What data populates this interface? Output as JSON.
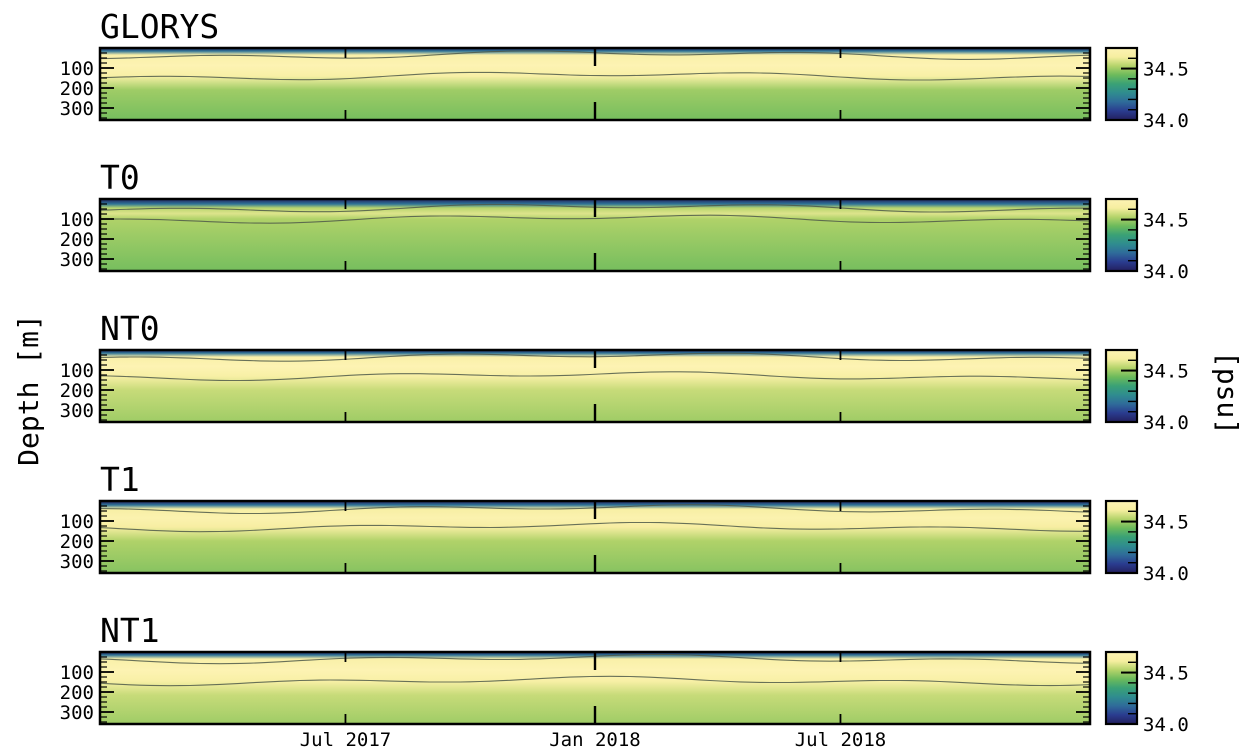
{
  "chart_data": {
    "type": "heatmap",
    "ylabel": "Depth [m]",
    "colorbar_label": "[psu]",
    "colormap": [
      "#231f5e",
      "#2a3c8f",
      "#2f6b9a",
      "#2f8c8f",
      "#3aa176",
      "#6cba5c",
      "#b4d36a",
      "#f6eea0",
      "#fdf3b3"
    ],
    "x_ticks": [
      "Jul 2017",
      "Jan 2018",
      "Jul 2018"
    ],
    "x_range": [
      "2017-01-01",
      "2019-01-01"
    ],
    "y_ticks": [
      100,
      200,
      300
    ],
    "y_range": [
      360,
      0
    ],
    "colorbar_ticks": [
      34.5,
      34.0
    ],
    "colorbar_range": [
      34.0,
      34.7
    ],
    "panels": [
      {
        "name": "GLORYS",
        "core_top_depth": 35,
        "core_bottom_depth": 140,
        "core_salinity": 34.7,
        "deep_salinity": 34.45
      },
      {
        "name": "T0",
        "core_top_depth": 45,
        "core_bottom_depth": 100,
        "core_salinity": 34.58,
        "deep_salinity": 34.45
      },
      {
        "name": "NT0",
        "core_top_depth": 35,
        "core_bottom_depth": 130,
        "core_salinity": 34.7,
        "deep_salinity": 34.5
      },
      {
        "name": "T1",
        "core_top_depth": 40,
        "core_bottom_depth": 130,
        "core_salinity": 34.68,
        "deep_salinity": 34.47
      },
      {
        "name": "NT1",
        "core_top_depth": 35,
        "core_bottom_depth": 145,
        "core_salinity": 34.7,
        "deep_salinity": 34.5
      }
    ]
  }
}
